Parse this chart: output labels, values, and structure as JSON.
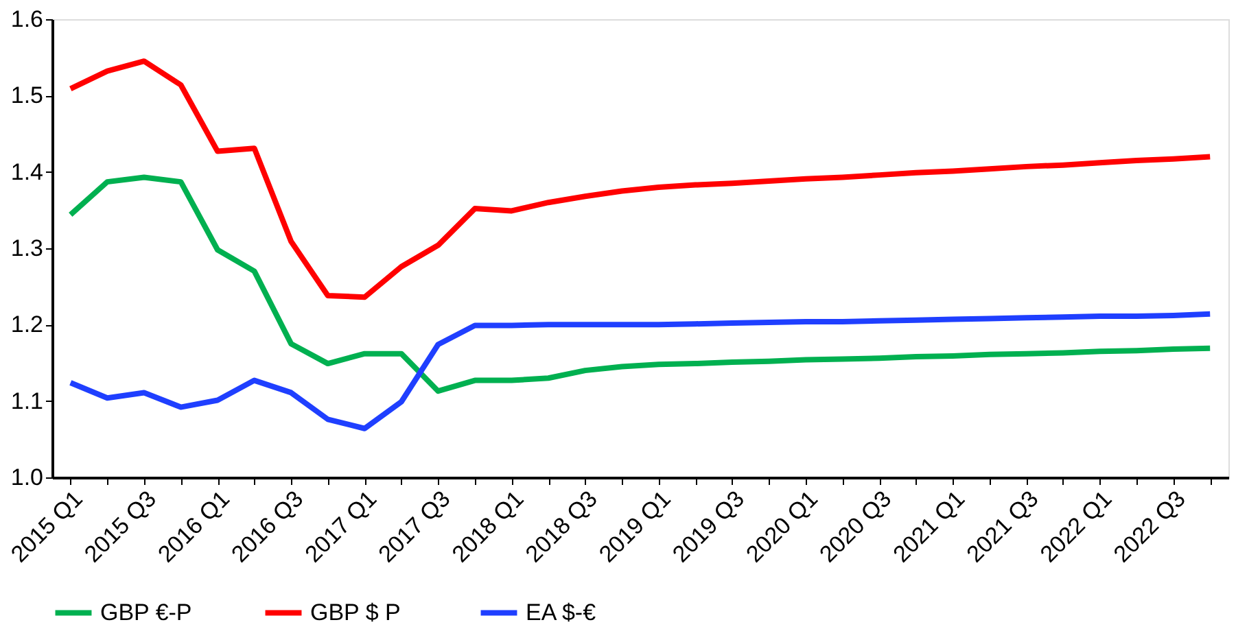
{
  "chart_data": {
    "type": "line",
    "categories": [
      "2015 Q1",
      null,
      "2015 Q3",
      null,
      "2016 Q1",
      null,
      "2016 Q3",
      null,
      "2017 Q1",
      null,
      "2017 Q3",
      null,
      "2018 Q1",
      null,
      "2018 Q3",
      null,
      "2019 Q1",
      null,
      "2019 Q3",
      null,
      "2020 Q1",
      null,
      "2020 Q3",
      null,
      "2021 Q1",
      null,
      "2021 Q3",
      null,
      "2022 Q1",
      null,
      "2022 Q3",
      null
    ],
    "series": [
      {
        "name": "GBP  €-P",
        "color": "#00b050",
        "values": [
          1.344,
          1.387,
          1.393,
          1.387,
          1.298,
          1.27,
          1.175,
          1.149,
          1.162,
          1.162,
          1.113,
          1.127,
          1.127,
          1.13,
          1.14,
          1.145,
          1.148,
          1.149,
          1.151,
          1.152,
          1.154,
          1.155,
          1.156,
          1.158,
          1.159,
          1.161,
          1.162,
          1.163,
          1.165,
          1.166,
          1.168,
          1.169
        ]
      },
      {
        "name": "GBP  $  P",
        "color": "#ff0000",
        "values": [
          1.509,
          1.532,
          1.545,
          1.514,
          1.427,
          1.431,
          1.309,
          1.238,
          1.236,
          1.276,
          1.304,
          1.352,
          1.349,
          1.36,
          1.368,
          1.375,
          1.38,
          1.383,
          1.385,
          1.388,
          1.391,
          1.393,
          1.396,
          1.399,
          1.401,
          1.404,
          1.407,
          1.409,
          1.412,
          1.415,
          1.417,
          1.42
        ]
      },
      {
        "name": "EA  $-€",
        "color": "#1f3fff",
        "values": [
          1.124,
          1.104,
          1.111,
          1.092,
          1.101,
          1.127,
          1.111,
          1.076,
          1.064,
          1.099,
          1.174,
          1.199,
          1.199,
          1.2,
          1.2,
          1.2,
          1.2,
          1.201,
          1.202,
          1.203,
          1.204,
          1.204,
          1.205,
          1.206,
          1.207,
          1.208,
          1.209,
          1.21,
          1.211,
          1.211,
          1.212,
          1.214
        ]
      }
    ],
    "ylim": [
      1.0,
      1.6
    ],
    "yticks": [
      {
        "value": 1.0,
        "label": "1.0"
      },
      1.1,
      1.2,
      1.3,
      1.4,
      1.5,
      1.6
    ],
    "grid": false,
    "legend": "bottom",
    "line_style": "solid",
    "marker": "none"
  }
}
